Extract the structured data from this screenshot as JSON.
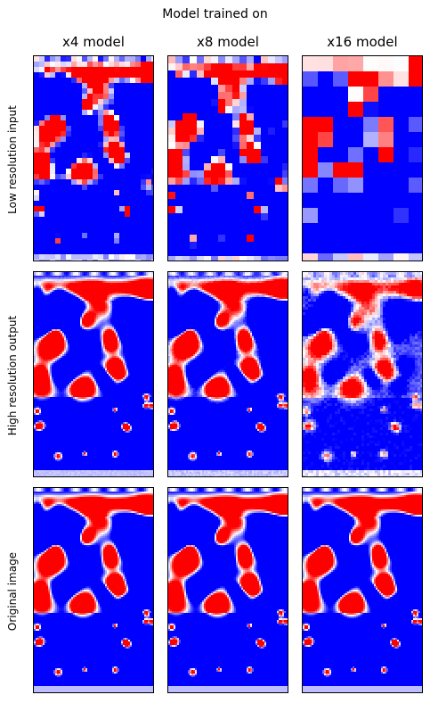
{
  "figure": {
    "suptitle": "Model trained on",
    "columns": [
      "x4 model",
      "x8 model",
      "x16 model"
    ],
    "rows": [
      "Low resolution input",
      "High resolution output",
      "Original image"
    ],
    "colors": {
      "hot": "#ff0000",
      "cold": "#0000ff",
      "neutral": "#ffffff"
    },
    "upscale_factors": [
      4,
      8,
      16
    ]
  }
}
